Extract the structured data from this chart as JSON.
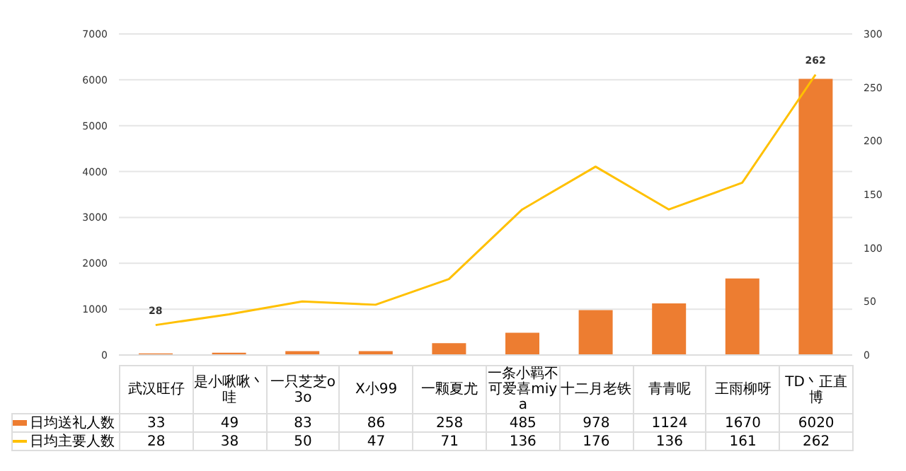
{
  "chart_data": {
    "type": "bar",
    "categories": [
      "武汉旺仔",
      "是小啾啾丶哇",
      "一只芝芝o3o",
      "X小99",
      "一颗夏尤",
      "一条小羁不可爱喜miya",
      "十二月老铁",
      "青青呢",
      "王雨柳呀",
      "TD丶正直博"
    ],
    "series": [
      {
        "name": "日均送礼人数",
        "color": "#ed7d31",
        "values": [
          33,
          49,
          83,
          86,
          258,
          485,
          978,
          1124,
          1670,
          6020
        ]
      },
      {
        "name": "日均主要人数",
        "type": "line",
        "axis": "y2",
        "color": "#ffc000",
        "values": [
          28,
          38,
          50,
          47,
          71,
          136,
          176,
          136,
          161,
          262
        ]
      }
    ],
    "ylim": [
      0,
      7000
    ],
    "yticks": [
      0,
      1000,
      2000,
      3000,
      4000,
      5000,
      6000,
      7000
    ],
    "y2lim": [
      0,
      300
    ],
    "y2ticks": [
      0,
      50,
      100,
      150,
      200,
      250,
      300
    ],
    "annotations": [
      "28",
      "262"
    ],
    "grid": "y",
    "legend": "bottom",
    "data_labels": true
  }
}
